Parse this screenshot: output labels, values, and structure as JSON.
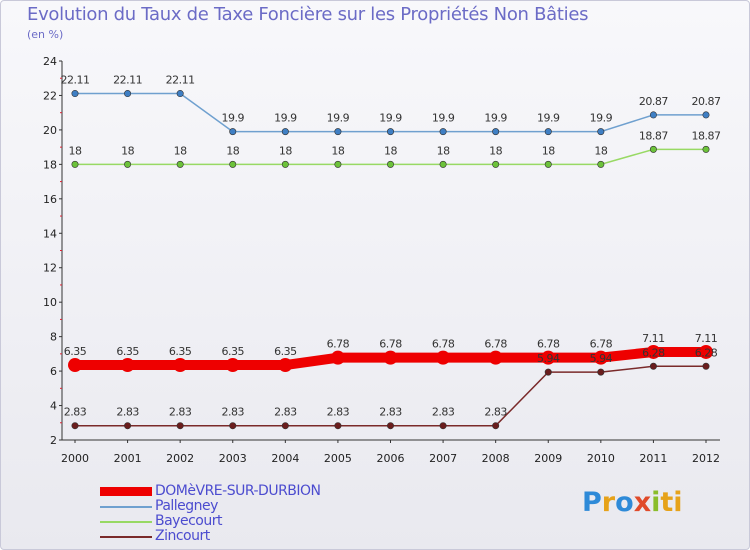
{
  "title": "Evolution du Taux de Taxe Foncière sur les Propriétés Non Bâties",
  "unit": "(en %)",
  "logo": [
    "P",
    "r",
    "o",
    "x",
    "i",
    "ti"
  ],
  "colors": {
    "title": "#6b6bc6",
    "legend_text": "#4c4ccf"
  },
  "chart_data": {
    "type": "line",
    "title": "Evolution du Taux de Taxe Foncière sur les Propriétés Non Bâties",
    "ylabel": "(en %)",
    "xlabel": "",
    "ylim": [
      2,
      24
    ],
    "yticks": [
      2,
      4,
      6,
      8,
      10,
      12,
      14,
      16,
      18,
      20,
      22,
      24
    ],
    "grid": false,
    "legend_position": "bottom-left",
    "categories": [
      "2000",
      "2001",
      "2002",
      "2003",
      "2004",
      "2005",
      "2006",
      "2007",
      "2008",
      "2009",
      "2010",
      "2011",
      "2012"
    ],
    "series": [
      {
        "name": "DOMèVRE-SUR-DURBION",
        "color": "#ee0000",
        "style": "thick",
        "values": [
          6.35,
          6.35,
          6.35,
          6.35,
          6.35,
          6.78,
          6.78,
          6.78,
          6.78,
          6.78,
          6.78,
          7.11,
          7.11
        ],
        "labels": [
          "6.35",
          "6.35",
          "6.35",
          "6.35",
          "6.35",
          "6.78",
          "6.78",
          "6.78",
          "6.78",
          "6.78",
          "6.78",
          "7.11",
          "7.11"
        ]
      },
      {
        "name": "Pallegney",
        "color": "#6fa0cf",
        "marker_color": "#3f7fc4",
        "values": [
          22.11,
          22.11,
          22.11,
          19.9,
          19.9,
          19.9,
          19.9,
          19.9,
          19.9,
          19.9,
          19.9,
          20.87,
          20.87
        ],
        "labels": [
          "22.11",
          "22.11",
          "22.11",
          "19.9",
          "19.9",
          "19.9",
          "19.9",
          "19.9",
          "19.9",
          "19.9",
          "19.9",
          "20.87",
          "20.87"
        ]
      },
      {
        "name": "Bayecourt",
        "color": "#98d964",
        "marker_color": "#6cc23a",
        "values": [
          18,
          18,
          18,
          18,
          18,
          18,
          18,
          18,
          18,
          18,
          18,
          18.87,
          18.87
        ],
        "labels": [
          "18",
          "18",
          "18",
          "18",
          "18",
          "18",
          "18",
          "18",
          "18",
          "18",
          "18",
          "18.87",
          "18.87"
        ]
      },
      {
        "name": "Zincourt",
        "color": "#7a2a2a",
        "marker_color": "#6a1d1d",
        "values": [
          2.83,
          2.83,
          2.83,
          2.83,
          2.83,
          2.83,
          2.83,
          2.83,
          2.83,
          5.94,
          5.94,
          6.28,
          6.28
        ],
        "labels": [
          "2.83",
          "2.83",
          "2.83",
          "2.83",
          "2.83",
          "2.83",
          "2.83",
          "2.83",
          "2.83",
          "5.94",
          "5.94",
          "6.28",
          "6.28"
        ]
      }
    ]
  }
}
